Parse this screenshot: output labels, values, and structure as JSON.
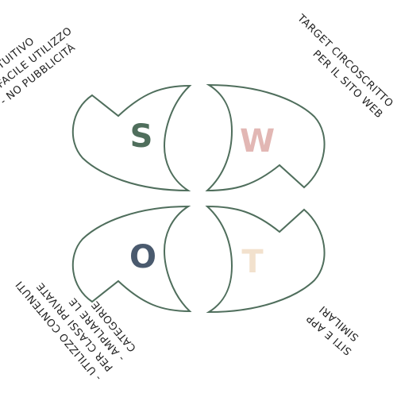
{
  "colors": {
    "outline": "#4f6e5c",
    "s": "#4f6e5c",
    "w": "#e2b7b4",
    "o": "#4a5a6e",
    "t": "#f2e1cd"
  },
  "quadrants": {
    "s": {
      "letter": "S",
      "notes": [
        "- INTUITIVO",
        "- FACILE UTILIZZO",
        "- NO PUBBLICITÀ"
      ]
    },
    "w": {
      "letter": "W",
      "notes": [
        "TARGET CIRCOSCRITTO",
        "PER IL SITO WEB"
      ]
    },
    "o": {
      "letter": "O",
      "notes": [
        "- UTILIZZO CONTENUTI",
        "PER CLASSI PRIVATE",
        "- AMPLIARE LE",
        "CATEGORIE"
      ]
    },
    "t": {
      "letter": "T",
      "notes": [
        "SITI E APP",
        "SIMILARI"
      ]
    }
  }
}
